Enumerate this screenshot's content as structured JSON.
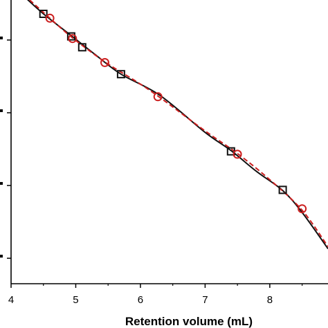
{
  "chart_data": {
    "type": "scatter",
    "xlabel": "Retention volume (mL)",
    "ylabel": "",
    "xlim": [
      4,
      8.9
    ],
    "ylim": [
      -0.35,
      3.55
    ],
    "y_scale": "log",
    "grid": false,
    "x_ticks": [
      4,
      5,
      6,
      7,
      8
    ],
    "y_ticks": [
      0,
      1,
      2,
      3
    ],
    "series": [
      {
        "marker": "square",
        "color": "#111111",
        "points": [
          {
            "x": 4.5,
            "y": 3.36
          },
          {
            "x": 4.93,
            "y": 3.05
          },
          {
            "x": 5.1,
            "y": 2.9
          },
          {
            "x": 5.7,
            "y": 2.53
          },
          {
            "x": 7.4,
            "y": 1.47
          },
          {
            "x": 8.2,
            "y": 0.94
          }
        ],
        "fit": [
          {
            "x": 4.2,
            "y": 3.6
          },
          {
            "x": 4.5,
            "y": 3.36
          },
          {
            "x": 4.93,
            "y": 3.06
          },
          {
            "x": 5.3,
            "y": 2.8
          },
          {
            "x": 5.7,
            "y": 2.53
          },
          {
            "x": 6.3,
            "y": 2.24
          },
          {
            "x": 7.0,
            "y": 1.73
          },
          {
            "x": 7.4,
            "y": 1.48
          },
          {
            "x": 7.8,
            "y": 1.19
          },
          {
            "x": 8.2,
            "y": 0.93
          },
          {
            "x": 8.5,
            "y": 0.63
          },
          {
            "x": 8.9,
            "y": 0.13
          }
        ]
      },
      {
        "marker": "circle",
        "color": "#cc1f1f",
        "points": [
          {
            "x": 4.6,
            "y": 3.3
          },
          {
            "x": 4.95,
            "y": 3.02
          },
          {
            "x": 5.45,
            "y": 2.69
          },
          {
            "x": 6.27,
            "y": 2.22
          },
          {
            "x": 7.5,
            "y": 1.43
          },
          {
            "x": 8.5,
            "y": 0.68
          }
        ],
        "fit": [
          {
            "x": 4.2,
            "y": 3.62
          },
          {
            "x": 4.6,
            "y": 3.3
          },
          {
            "x": 4.95,
            "y": 3.03
          },
          {
            "x": 5.45,
            "y": 2.7
          },
          {
            "x": 5.9,
            "y": 2.45
          },
          {
            "x": 6.27,
            "y": 2.23
          },
          {
            "x": 7.0,
            "y": 1.75
          },
          {
            "x": 7.5,
            "y": 1.44
          },
          {
            "x": 8.0,
            "y": 1.08
          },
          {
            "x": 8.5,
            "y": 0.66
          },
          {
            "x": 8.9,
            "y": 0.16
          }
        ]
      }
    ]
  }
}
